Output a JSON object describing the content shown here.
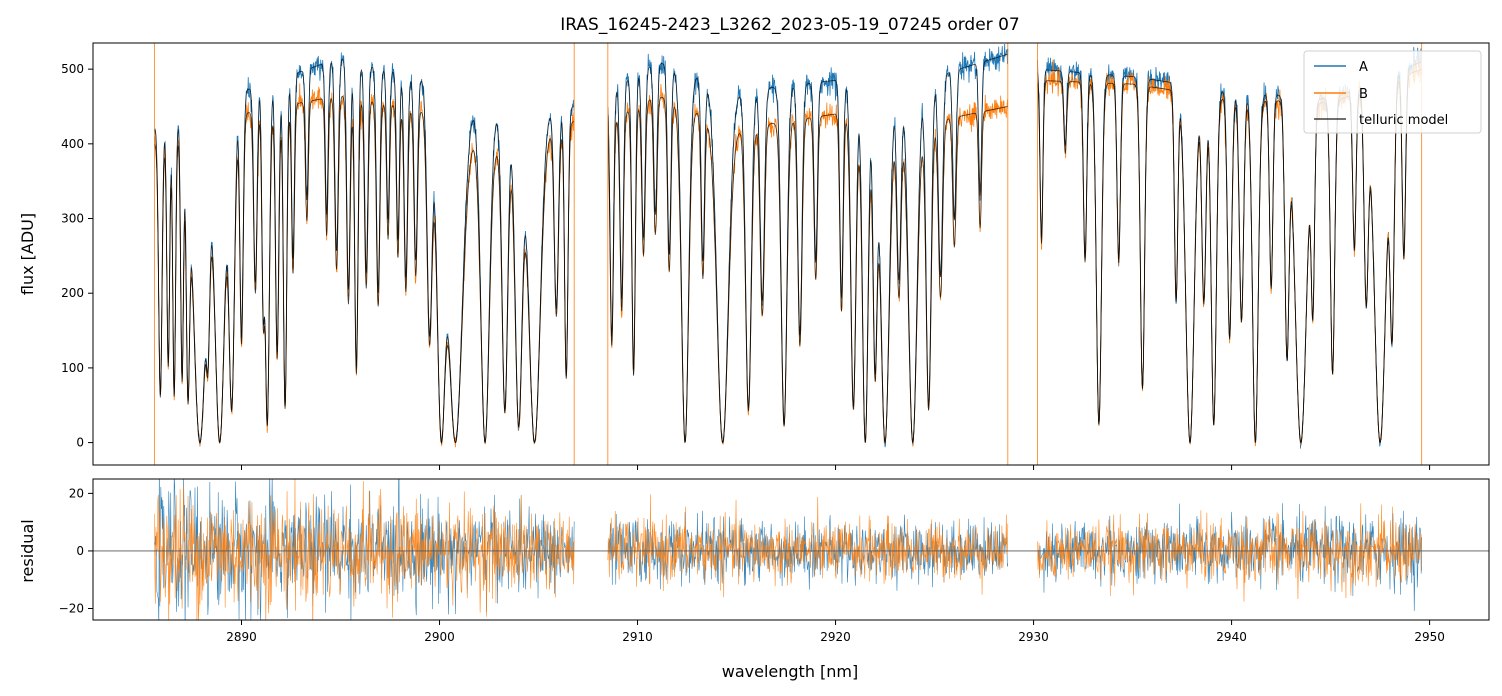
{
  "chart_data": [
    {
      "type": "line",
      "panel": "flux",
      "title": "IRAS_16245-2423_L3262_2023-05-19_07245  order 07",
      "xlabel": "",
      "ylabel": "flux [ADU]",
      "xlim": [
        2882.5,
        2953.0
      ],
      "ylim": [
        -30,
        535
      ],
      "yticks": [
        0,
        100,
        200,
        300,
        400,
        500
      ],
      "ytick_labels": [
        "0",
        "100",
        "200",
        "300",
        "400",
        "500"
      ],
      "legend_position": "top-right",
      "legend": [
        "A",
        "B",
        "telluric model"
      ],
      "grid": false,
      "segments": [
        [
          2885.6,
          2906.8
        ],
        [
          2908.5,
          2928.7
        ],
        [
          2930.2,
          2949.6
        ]
      ],
      "continuum_A": {
        "x": [
          2885.6,
          2890,
          2895,
          2900,
          2903,
          2906.8,
          2908.5,
          2911,
          2915,
          2920,
          2925,
          2928.7,
          2930.2,
          2935,
          2940,
          2945,
          2949.6
        ],
        "y": [
          420,
          470,
          515,
          480,
          440,
          450,
          470,
          510,
          470,
          485,
          490,
          520,
          500,
          490,
          470,
          460,
          510
        ]
      },
      "continuum_B": {
        "x": [
          2885.6,
          2890,
          2895,
          2900,
          2903,
          2906.8,
          2908.5,
          2911,
          2915,
          2920,
          2925,
          2928.7,
          2930.2,
          2935,
          2940,
          2945,
          2949.6
        ],
        "y": [
          400,
          440,
          465,
          440,
          395,
          430,
          430,
          465,
          420,
          440,
          430,
          450,
          485,
          480,
          460,
          455,
          500
        ]
      },
      "absorption_lines": [
        {
          "c": 2885.9,
          "d": 0.85,
          "w": 0.12
        },
        {
          "c": 2886.3,
          "d": 0.75,
          "w": 0.1
        },
        {
          "c": 2886.6,
          "d": 0.85,
          "w": 0.1
        },
        {
          "c": 2887.0,
          "d": 0.8,
          "w": 0.1
        },
        {
          "c": 2887.3,
          "d": 0.85,
          "w": 0.12
        },
        {
          "c": 2887.9,
          "d": 1.0,
          "w": 0.45
        },
        {
          "c": 2888.3,
          "d": 0.6,
          "w": 0.12
        },
        {
          "c": 2888.9,
          "d": 1.0,
          "w": 0.35
        },
        {
          "c": 2889.5,
          "d": 0.9,
          "w": 0.2
        },
        {
          "c": 2890.0,
          "d": 0.7,
          "w": 0.12
        },
        {
          "c": 2890.7,
          "d": 0.55,
          "w": 0.12
        },
        {
          "c": 2891.1,
          "d": 0.6,
          "w": 0.1
        },
        {
          "c": 2891.3,
          "d": 0.95,
          "w": 0.15
        },
        {
          "c": 2891.8,
          "d": 0.75,
          "w": 0.12
        },
        {
          "c": 2892.2,
          "d": 0.9,
          "w": 0.12
        },
        {
          "c": 2892.6,
          "d": 0.5,
          "w": 0.1
        },
        {
          "c": 2893.3,
          "d": 0.35,
          "w": 0.1
        },
        {
          "c": 2894.3,
          "d": 0.4,
          "w": 0.1
        },
        {
          "c": 2894.8,
          "d": 0.5,
          "w": 0.12
        },
        {
          "c": 2895.4,
          "d": 0.6,
          "w": 0.12
        },
        {
          "c": 2895.8,
          "d": 0.8,
          "w": 0.12
        },
        {
          "c": 2896.3,
          "d": 0.55,
          "w": 0.12
        },
        {
          "c": 2896.9,
          "d": 0.6,
          "w": 0.12
        },
        {
          "c": 2897.4,
          "d": 0.4,
          "w": 0.1
        },
        {
          "c": 2897.9,
          "d": 0.45,
          "w": 0.1
        },
        {
          "c": 2898.3,
          "d": 0.55,
          "w": 0.12
        },
        {
          "c": 2898.8,
          "d": 0.5,
          "w": 0.12
        },
        {
          "c": 2899.5,
          "d": 0.7,
          "w": 0.18
        },
        {
          "c": 2900.1,
          "d": 1.0,
          "w": 0.3
        },
        {
          "c": 2900.8,
          "d": 1.0,
          "w": 0.5
        },
        {
          "c": 2902.3,
          "d": 1.0,
          "w": 0.3
        },
        {
          "c": 2903.3,
          "d": 0.9,
          "w": 0.2
        },
        {
          "c": 2904.0,
          "d": 0.95,
          "w": 0.25
        },
        {
          "c": 2904.8,
          "d": 1.0,
          "w": 0.4
        },
        {
          "c": 2905.9,
          "d": 0.6,
          "w": 0.15
        },
        {
          "c": 2906.4,
          "d": 0.8,
          "w": 0.12
        },
        {
          "c": 2908.7,
          "d": 0.7,
          "w": 0.12
        },
        {
          "c": 2909.2,
          "d": 0.6,
          "w": 0.12
        },
        {
          "c": 2909.8,
          "d": 0.8,
          "w": 0.12
        },
        {
          "c": 2910.3,
          "d": 0.45,
          "w": 0.12
        },
        {
          "c": 2910.9,
          "d": 0.4,
          "w": 0.12
        },
        {
          "c": 2911.6,
          "d": 0.5,
          "w": 0.12
        },
        {
          "c": 2912.4,
          "d": 1.0,
          "w": 0.25
        },
        {
          "c": 2913.3,
          "d": 0.5,
          "w": 0.12
        },
        {
          "c": 2914.3,
          "d": 1.0,
          "w": 0.4
        },
        {
          "c": 2915.6,
          "d": 0.9,
          "w": 0.2
        },
        {
          "c": 2916.3,
          "d": 0.6,
          "w": 0.15
        },
        {
          "c": 2917.4,
          "d": 0.95,
          "w": 0.2
        },
        {
          "c": 2918.2,
          "d": 0.7,
          "w": 0.15
        },
        {
          "c": 2919.0,
          "d": 0.5,
          "w": 0.12
        },
        {
          "c": 2920.3,
          "d": 0.6,
          "w": 0.12
        },
        {
          "c": 2920.9,
          "d": 0.9,
          "w": 0.18
        },
        {
          "c": 2921.5,
          "d": 1.0,
          "w": 0.2
        },
        {
          "c": 2922.0,
          "d": 0.8,
          "w": 0.15
        },
        {
          "c": 2922.5,
          "d": 1.0,
          "w": 0.3
        },
        {
          "c": 2923.2,
          "d": 0.55,
          "w": 0.15
        },
        {
          "c": 2923.9,
          "d": 1.0,
          "w": 0.3
        },
        {
          "c": 2924.7,
          "d": 0.9,
          "w": 0.18
        },
        {
          "c": 2925.3,
          "d": 0.55,
          "w": 0.15
        },
        {
          "c": 2926.0,
          "d": 0.4,
          "w": 0.12
        },
        {
          "c": 2927.3,
          "d": 0.35,
          "w": 0.1
        },
        {
          "c": 2930.4,
          "d": 0.45,
          "w": 0.1
        },
        {
          "c": 2931.6,
          "d": 0.2,
          "w": 0.1
        },
        {
          "c": 2932.6,
          "d": 0.5,
          "w": 0.12
        },
        {
          "c": 2933.3,
          "d": 0.95,
          "w": 0.18
        },
        {
          "c": 2934.3,
          "d": 0.5,
          "w": 0.12
        },
        {
          "c": 2935.5,
          "d": 0.85,
          "w": 0.15
        },
        {
          "c": 2937.2,
          "d": 0.6,
          "w": 0.12
        },
        {
          "c": 2937.9,
          "d": 1.0,
          "w": 0.3
        },
        {
          "c": 2938.6,
          "d": 0.6,
          "w": 0.15
        },
        {
          "c": 2939.1,
          "d": 0.95,
          "w": 0.18
        },
        {
          "c": 2939.9,
          "d": 0.7,
          "w": 0.15
        },
        {
          "c": 2940.5,
          "d": 0.65,
          "w": 0.15
        },
        {
          "c": 2941.2,
          "d": 1.0,
          "w": 0.2
        },
        {
          "c": 2942.0,
          "d": 0.55,
          "w": 0.12
        },
        {
          "c": 2942.8,
          "d": 0.75,
          "w": 0.15
        },
        {
          "c": 2943.5,
          "d": 1.0,
          "w": 0.4
        },
        {
          "c": 2944.1,
          "d": 0.6,
          "w": 0.12
        },
        {
          "c": 2945.1,
          "d": 0.8,
          "w": 0.15
        },
        {
          "c": 2946.2,
          "d": 0.45,
          "w": 0.12
        },
        {
          "c": 2946.8,
          "d": 0.6,
          "w": 0.15
        },
        {
          "c": 2947.5,
          "d": 1.0,
          "w": 0.4
        },
        {
          "c": 2948.1,
          "d": 0.7,
          "w": 0.15
        },
        {
          "c": 2948.7,
          "d": 0.5,
          "w": 0.12
        }
      ],
      "vertical_spikes_B": [
        2885.6,
        2906.8,
        2908.5,
        2928.7,
        2930.2,
        2949.6
      ],
      "noise_amplitude": 8,
      "series": [
        {
          "name": "A",
          "color": "#1f77b4",
          "linewidth": 0.8
        },
        {
          "name": "B",
          "color": "#ff7f0e",
          "linewidth": 0.8
        },
        {
          "name": "telluric model",
          "color": "#000000",
          "linewidth": 0.8,
          "alpha": 0.8
        }
      ]
    },
    {
      "type": "line",
      "panel": "residual",
      "xlabel": "wavelength [nm]",
      "ylabel": "residual",
      "xlim": [
        2882.5,
        2953.0
      ],
      "ylim": [
        -24,
        25
      ],
      "xticks": [
        2890,
        2900,
        2910,
        2920,
        2930,
        2940,
        2950
      ],
      "xtick_labels": [
        "2890",
        "2900",
        "2910",
        "2920",
        "2930",
        "2940",
        "2950"
      ],
      "yticks": [
        -20,
        0,
        20
      ],
      "ytick_labels": [
        "−20",
        "0",
        "20"
      ],
      "zero_line": 0,
      "grid": false,
      "segments": [
        [
          2885.6,
          2906.8
        ],
        [
          2908.5,
          2928.7
        ],
        [
          2930.2,
          2949.6
        ]
      ],
      "noise_amplitude_by_region": {
        "x": [
          2885.6,
          2895,
          2902,
          2906.8,
          2908.5,
          2928.7,
          2930.2,
          2949.6
        ],
        "amp": [
          16,
          13,
          11,
          9,
          8,
          7,
          7,
          9
        ]
      },
      "series": [
        {
          "name": "A",
          "color": "#1f77b4",
          "linewidth": 0.6
        },
        {
          "name": "B",
          "color": "#ff7f0e",
          "linewidth": 0.6
        }
      ]
    }
  ],
  "colors": {
    "A": "#1f77b4",
    "B": "#ff7f0e",
    "model": "#000000",
    "axes": "#000000",
    "zero_line": "#555555"
  }
}
